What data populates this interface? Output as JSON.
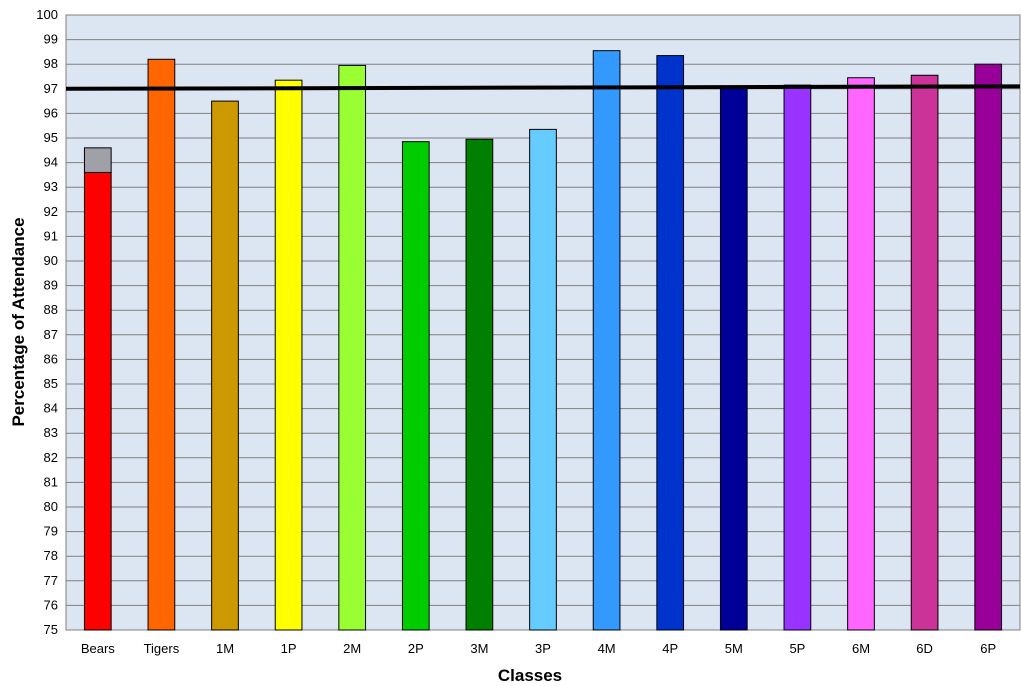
{
  "chart_data": {
    "type": "bar",
    "title": "",
    "xlabel": "Classes",
    "ylabel": "Percentage of Attendance",
    "ylim": [
      75,
      100
    ],
    "ytick_step": 1,
    "grid": true,
    "legend": "none",
    "plot_background": "#dce6f2",
    "categories": [
      "Bears",
      "Tigers",
      "1M",
      "1P",
      "2M",
      "2P",
      "3M",
      "3P",
      "4M",
      "4P",
      "5M",
      "5P",
      "6M",
      "6D",
      "6P"
    ],
    "values": [
      93.6,
      98.2,
      96.5,
      97.35,
      97.95,
      94.85,
      94.95,
      95.35,
      98.55,
      98.35,
      97.1,
      97.15,
      97.45,
      97.55,
      98.0
    ],
    "colors": [
      "#ff0000",
      "#ff6600",
      "#cc9900",
      "#ffff00",
      "#99ff33",
      "#00cc00",
      "#007f00",
      "#66ccff",
      "#3399ff",
      "#0033cc",
      "#000099",
      "#9933ff",
      "#ff66ff",
      "#cc3399",
      "#990099"
    ],
    "stacked_extra": [
      {
        "category": "Bears",
        "from": 93.6,
        "to": 94.6,
        "color": "#a0a0a8"
      }
    ],
    "target_line": {
      "y_start": 97.0,
      "y_end": 97.1,
      "color": "#000000"
    }
  }
}
